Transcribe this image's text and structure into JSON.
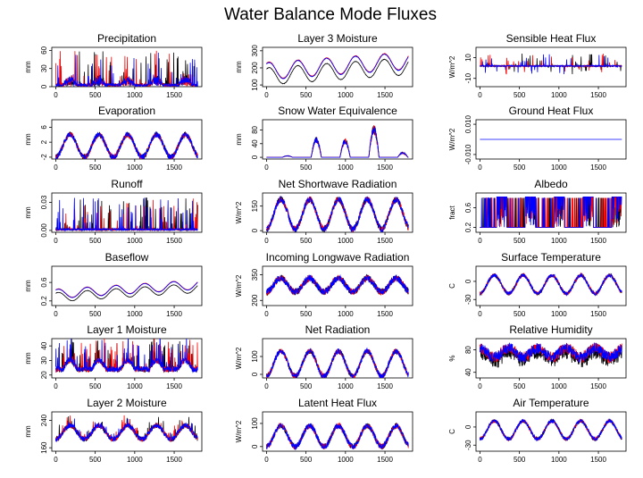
{
  "title": "Water Balance Mode Fluxes",
  "colors": {
    "black": "#000000",
    "red": "#ff0000",
    "blue": "#0000ff"
  },
  "chart_data": [
    {
      "id": "precipitation",
      "title": "Precipitation",
      "type": "line",
      "ylabel": "mm",
      "yticks": [
        0,
        30,
        60
      ],
      "ylim": [
        0,
        65
      ],
      "xticks": [
        0,
        500,
        1000,
        1500
      ],
      "xlim": [
        -50,
        1850
      ],
      "style": "spikes",
      "base": 0,
      "amp": 15,
      "noise": 10,
      "spike": 60,
      "seed": 1
    },
    {
      "id": "layer3_moisture",
      "title": "Layer 3 Moisture",
      "type": "line",
      "ylabel": "mm",
      "yticks": [
        100,
        200,
        300
      ],
      "ylim": [
        90,
        320
      ],
      "xticks": [
        0,
        500,
        1000,
        1500
      ],
      "xlim": [
        -50,
        1850
      ],
      "style": "smooth",
      "base": 210,
      "amp": 50,
      "trend": 60,
      "offset": 30,
      "seed": 2
    },
    {
      "id": "sensible_heat_flux",
      "title": "Sensible Heat Flux",
      "type": "line",
      "ylabel": "W/m^2",
      "yticks": [
        -10,
        10
      ],
      "ylim": [
        -18,
        20
      ],
      "xticks": [
        0,
        500,
        1000,
        1500
      ],
      "xlim": [
        -50,
        1850
      ],
      "style": "flat_spikes",
      "base": 2,
      "amp": 0,
      "noise": 1,
      "spike": 10,
      "seed": 3
    },
    {
      "id": "evaporation",
      "title": "Evaporation",
      "type": "line",
      "ylabel": "mm",
      "yticks": [
        -2,
        2,
        6
      ],
      "ylim": [
        -2.5,
        8
      ],
      "xticks": [
        0,
        500,
        1000,
        1500
      ],
      "xlim": [
        -50,
        1850
      ],
      "style": "seasonal",
      "base": 1,
      "amp": 3,
      "noise": 1.5,
      "seed": 4
    },
    {
      "id": "snow_water_equivalence",
      "title": "Snow Water Equivalence",
      "type": "line",
      "ylabel": "mm",
      "yticks": [
        0,
        40,
        80
      ],
      "ylim": [
        -5,
        110
      ],
      "xticks": [
        0,
        500,
        1000,
        1500
      ],
      "xlim": [
        -50,
        1850
      ],
      "style": "snow",
      "seed": 5
    },
    {
      "id": "ground_heat_flux",
      "title": "Ground Heat Flux",
      "type": "line",
      "ylabel": "W/m^2",
      "yticks": [
        -0.01,
        0.01
      ],
      "ytick_labels": [
        "-0.010",
        "0.010"
      ],
      "ylim": [
        -0.013,
        0.013
      ],
      "xticks": [
        0,
        500,
        1000,
        1500
      ],
      "xlim": [
        -50,
        1850
      ],
      "style": "constant",
      "base": 0,
      "seed": 6
    },
    {
      "id": "runoff",
      "title": "Runoff",
      "type": "line",
      "ylabel": "mm",
      "yticks": [
        0.0,
        0.03
      ],
      "ytick_labels": [
        "0.00",
        "0.03"
      ],
      "ylim": [
        -0.002,
        0.04
      ],
      "xticks": [
        0,
        500,
        1000,
        1500
      ],
      "xlim": [
        -50,
        1850
      ],
      "style": "spikes",
      "base": 0,
      "amp": 0,
      "noise": 0.004,
      "spike": 0.035,
      "seed": 7
    },
    {
      "id": "net_shortwave_radiation",
      "title": "Net Shortwave Radiation",
      "type": "line",
      "ylabel": "W/m^2",
      "yticks": [
        0,
        150
      ],
      "ylim": [
        -10,
        230
      ],
      "xticks": [
        0,
        500,
        1000,
        1500
      ],
      "xlim": [
        -50,
        1850
      ],
      "style": "seasonal",
      "base": 100,
      "amp": 90,
      "noise": 40,
      "seed": 8
    },
    {
      "id": "albedo",
      "title": "Albedo",
      "type": "line",
      "ylabel": "fract",
      "yticks": [
        0.2,
        0.6
      ],
      "ylim": [
        0.1,
        0.9
      ],
      "xticks": [
        0,
        500,
        1000,
        1500
      ],
      "xlim": [
        -50,
        1850
      ],
      "style": "albedo",
      "seed": 9
    },
    {
      "id": "baseflow",
      "title": "Baseflow",
      "type": "line",
      "ylabel": "mm",
      "yticks": [
        0.2,
        0.6
      ],
      "ylim": [
        0.1,
        0.95
      ],
      "xticks": [
        0,
        500,
        1000,
        1500
      ],
      "xlim": [
        -50,
        1850
      ],
      "style": "smooth",
      "base": 0.45,
      "amp": 0.1,
      "trend": 0.2,
      "offset": 0.07,
      "seed": 10
    },
    {
      "id": "incoming_longwave_radiation",
      "title": "Incoming Longwave Radiation",
      "type": "line",
      "ylabel": "W/m^2",
      "yticks": [
        200,
        350
      ],
      "ylim": [
        170,
        400
      ],
      "xticks": [
        0,
        500,
        1000,
        1500
      ],
      "xlim": [
        -50,
        1850
      ],
      "style": "seasonal",
      "base": 290,
      "amp": 40,
      "noise": 40,
      "seed": 11
    },
    {
      "id": "surface_temperature",
      "title": "Surface Temperature",
      "type": "line",
      "ylabel": "C",
      "yticks": [
        -30,
        0
      ],
      "ylim": [
        -40,
        25
      ],
      "xticks": [
        0,
        500,
        1000,
        1500
      ],
      "xlim": [
        -50,
        1850
      ],
      "style": "seasonal",
      "base": -5,
      "amp": 15,
      "noise": 6,
      "seed": 12
    },
    {
      "id": "layer1_moisture",
      "title": "Layer 1 Moisture",
      "type": "line",
      "ylabel": "mm",
      "yticks": [
        20,
        30,
        40
      ],
      "ylim": [
        18,
        45
      ],
      "xticks": [
        0,
        500,
        1000,
        1500
      ],
      "xlim": [
        -50,
        1850
      ],
      "style": "spiky_base",
      "base": 22,
      "amp": 6,
      "noise": 4,
      "spike": 18,
      "seed": 13
    },
    {
      "id": "net_radiation",
      "title": "Net Radiation",
      "type": "line",
      "ylabel": "W/m^2",
      "yticks": [
        0,
        100
      ],
      "ylim": [
        -20,
        200
      ],
      "xticks": [
        0,
        500,
        1000,
        1500
      ],
      "xlim": [
        -50,
        1850
      ],
      "style": "seasonal",
      "base": 60,
      "amp": 70,
      "noise": 30,
      "seed": 14
    },
    {
      "id": "relative_humidity",
      "title": "Relative Humidity",
      "type": "line",
      "ylabel": "%",
      "yticks": [
        40,
        80
      ],
      "ylim": [
        30,
        100
      ],
      "xticks": [
        0,
        500,
        1000,
        1500
      ],
      "xlim": [
        -50,
        1850
      ],
      "style": "humidity",
      "base": 75,
      "amp": 8,
      "noise": 10,
      "seed": 15
    },
    {
      "id": "layer2_moisture",
      "title": "Layer 2 Moisture",
      "type": "line",
      "ylabel": "mm",
      "yticks": [
        160,
        240
      ],
      "ylim": [
        150,
        265
      ],
      "xticks": [
        0,
        500,
        1000,
        1500
      ],
      "xlim": [
        -50,
        1850
      ],
      "style": "seasonal_rough",
      "base": 205,
      "amp": 20,
      "noise": 15,
      "seed": 16
    },
    {
      "id": "latent_heat_flux",
      "title": "Latent Heat Flux",
      "type": "line",
      "ylabel": "W/m^2",
      "yticks": [
        0,
        100
      ],
      "ylim": [
        -20,
        150
      ],
      "xticks": [
        0,
        500,
        1000,
        1500
      ],
      "xlim": [
        -50,
        1850
      ],
      "style": "seasonal",
      "base": 45,
      "amp": 45,
      "noise": 25,
      "seed": 17
    },
    {
      "id": "air_temperature",
      "title": "Air Temperature",
      "type": "line",
      "ylabel": "C",
      "yticks": [
        -30,
        0
      ],
      "ylim": [
        -40,
        25
      ],
      "xticks": [
        0,
        500,
        1000,
        1500
      ],
      "xlim": [
        -50,
        1850
      ],
      "style": "seasonal",
      "base": -5,
      "amp": 15,
      "noise": 6,
      "seed": 18
    }
  ]
}
